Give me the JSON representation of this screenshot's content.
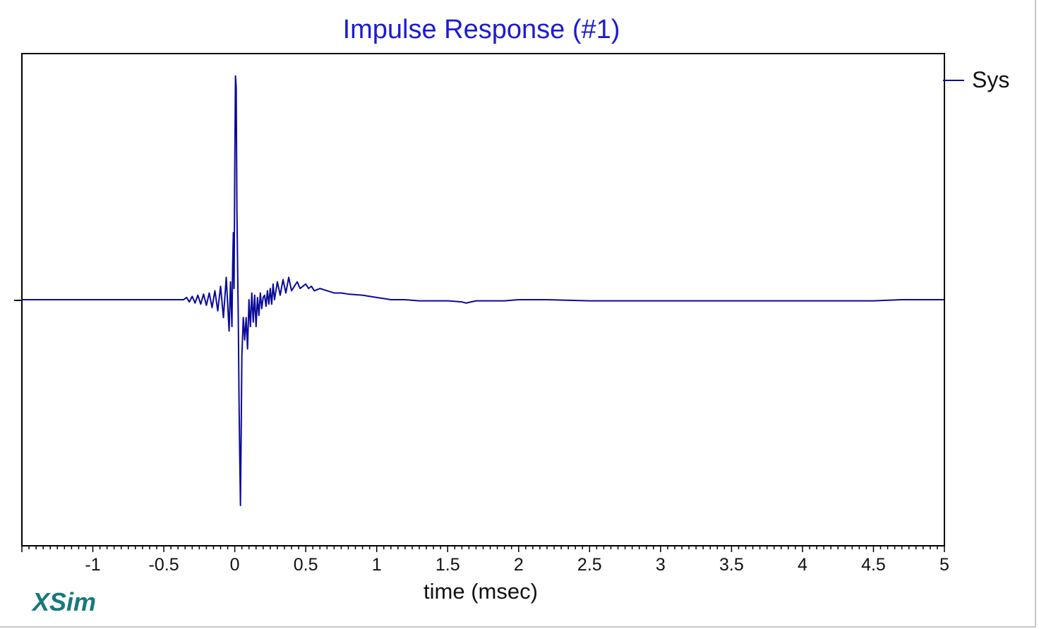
{
  "colors": {
    "title": "#1c1cd0",
    "trace": "#0a0a9a",
    "axis": "#000000",
    "brand": "#167a7a",
    "text": "#111111"
  },
  "brand": {
    "text": "XSim"
  },
  "chart_data": {
    "type": "line",
    "title": "Impulse Response (#1)",
    "xlabel": "time (msec)",
    "ylabel": "",
    "xlim": [
      -1.5,
      5
    ],
    "ylim": [
      -1.1,
      1.1
    ],
    "xticks": [
      -1,
      -0.5,
      0,
      0.5,
      1,
      1.5,
      2,
      2.5,
      3,
      3.5,
      4,
      4.5,
      5
    ],
    "xtick_labels": [
      "-1",
      "-0.5",
      "0",
      "0.5",
      "1",
      "1.5",
      "2",
      "2.5",
      "3",
      "3.5",
      "4",
      "4.5",
      "5"
    ],
    "grid": false,
    "legend": {
      "placement": "top-right",
      "entries": [
        "Sys"
      ]
    },
    "series": [
      {
        "name": "Sys",
        "x": [
          -1.5,
          -0.36,
          -0.34,
          -0.32,
          -0.3,
          -0.28,
          -0.26,
          -0.24,
          -0.22,
          -0.2,
          -0.18,
          -0.16,
          -0.14,
          -0.12,
          -0.1,
          -0.08,
          -0.06,
          -0.04,
          -0.03,
          -0.02,
          -0.015,
          -0.01,
          -0.005,
          0.0,
          0.005,
          0.01,
          0.015,
          0.02,
          0.025,
          0.03,
          0.035,
          0.04,
          0.045,
          0.05,
          0.06,
          0.07,
          0.08,
          0.09,
          0.1,
          0.11,
          0.12,
          0.13,
          0.14,
          0.15,
          0.16,
          0.17,
          0.18,
          0.19,
          0.2,
          0.21,
          0.22,
          0.23,
          0.24,
          0.25,
          0.26,
          0.27,
          0.28,
          0.3,
          0.32,
          0.34,
          0.36,
          0.38,
          0.4,
          0.42,
          0.44,
          0.46,
          0.48,
          0.5,
          0.52,
          0.54,
          0.56,
          0.6,
          0.65,
          0.7,
          0.75,
          0.8,
          0.9,
          1.0,
          1.05,
          1.1,
          1.2,
          1.3,
          1.5,
          1.6,
          1.63,
          1.7,
          1.9,
          2.0,
          2.2,
          2.5,
          3.0,
          3.5,
          4.0,
          4.5,
          4.7,
          5.0
        ],
        "y": [
          0.0,
          0.0,
          0.01,
          -0.01,
          0.015,
          -0.015,
          0.02,
          -0.02,
          0.025,
          -0.025,
          0.03,
          -0.035,
          0.04,
          -0.05,
          0.06,
          -0.08,
          0.1,
          -0.14,
          0.08,
          -0.12,
          0.15,
          0.3,
          0.05,
          0.6,
          1.0,
          0.95,
          0.4,
          0.15,
          -0.1,
          -0.45,
          -0.7,
          -0.92,
          -0.6,
          -0.25,
          -0.08,
          -0.18,
          -0.08,
          -0.22,
          0.0,
          -0.12,
          0.03,
          -0.1,
          0.02,
          -0.12,
          0.01,
          -0.07,
          0.03,
          -0.04,
          0.01,
          0.02,
          -0.03,
          0.04,
          -0.02,
          0.05,
          -0.02,
          0.07,
          0.0,
          0.08,
          0.02,
          0.09,
          0.03,
          0.1,
          0.04,
          0.06,
          0.08,
          0.05,
          0.06,
          0.07,
          0.05,
          0.06,
          0.04,
          0.05,
          0.04,
          0.03,
          0.03,
          0.025,
          0.02,
          0.01,
          0.005,
          0.0,
          0.0,
          -0.005,
          -0.005,
          -0.01,
          -0.015,
          -0.005,
          -0.005,
          0.0,
          0.0,
          -0.005,
          -0.005,
          -0.005,
          -0.005,
          -0.005,
          0.0,
          0.0
        ]
      }
    ]
  }
}
